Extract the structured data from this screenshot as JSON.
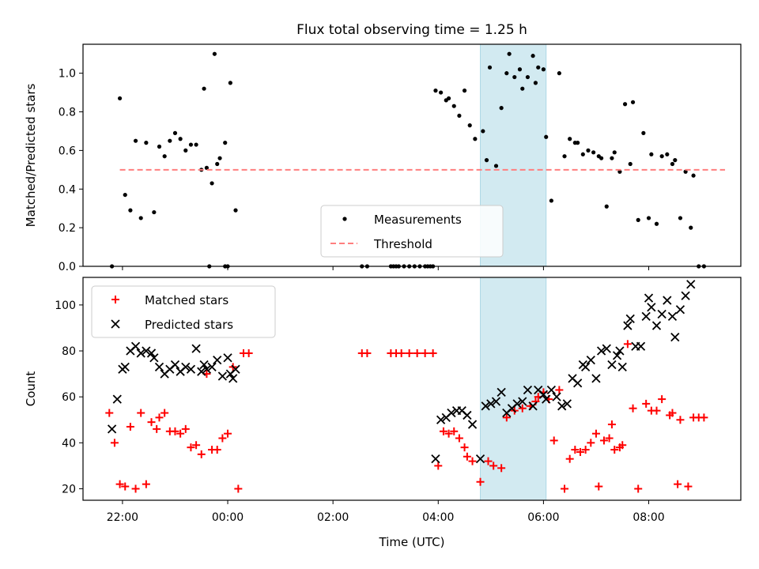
{
  "figure": {
    "title": "Flux total observing time = 1.25 h"
  },
  "chart_data": [
    {
      "type": "scatter",
      "name": "top",
      "ylabel": "Matched/Predicted stars",
      "ylim": [
        0,
        1.15
      ],
      "yticks": [
        0.0,
        0.2,
        0.4,
        0.6,
        0.8,
        1.0
      ],
      "ytick_labels": [
        "0.0",
        "0.2",
        "0.4",
        "0.6",
        "0.8",
        "1.0"
      ],
      "xlim": [
        -2.75,
        9.75
      ],
      "shaded_span": {
        "x0": 4.8,
        "x1": 6.05,
        "color": "#add8e6"
      },
      "legend": {
        "placement": "lower-center"
      },
      "series": [
        {
          "name": "Measurements",
          "color": "#000000",
          "marker": "dot",
          "x": [
            -2.2,
            -2.05,
            -1.95,
            -1.85,
            -1.75,
            -1.65,
            -1.55,
            -1.4,
            -1.3,
            -1.2,
            -1.1,
            -1.0,
            -0.9,
            -0.8,
            -0.7,
            -0.6,
            -0.5,
            -0.45,
            -0.4,
            -0.3,
            -0.2,
            -0.15,
            -0.05,
            0.05,
            0.15,
            -0.25,
            -0.35,
            3.95,
            4.05,
            4.15,
            4.2,
            4.3,
            4.4,
            4.5,
            4.6,
            4.7,
            4.85,
            4.92,
            4.98,
            5.1,
            5.2,
            5.3,
            5.35,
            5.45,
            5.55,
            5.6,
            5.7,
            5.8,
            5.85,
            5.9,
            6.0,
            6.05,
            6.15,
            6.3,
            6.4,
            6.5,
            6.6,
            6.65,
            6.75,
            6.85,
            6.95,
            7.05,
            7.1,
            7.2,
            7.3,
            7.35,
            7.45,
            7.55,
            7.65,
            7.7,
            7.8,
            7.9,
            8.0,
            8.05,
            8.15,
            8.25,
            8.35,
            8.45,
            8.5,
            8.6,
            8.7,
            8.8,
            8.85,
            8.95,
            9.05
          ],
          "y": [
            0.0,
            0.87,
            0.37,
            0.29,
            0.65,
            0.25,
            0.64,
            0.28,
            0.62,
            0.57,
            0.65,
            0.69,
            0.66,
            0.6,
            0.63,
            0.63,
            0.5,
            0.92,
            0.51,
            0.43,
            0.53,
            0.56,
            0.64,
            0.95,
            0.29,
            1.1,
            0.0,
            0.91,
            0.9,
            0.86,
            0.87,
            0.83,
            0.78,
            0.91,
            0.73,
            0.66,
            0.7,
            0.55,
            1.03,
            0.52,
            0.82,
            1.0,
            1.1,
            0.98,
            1.02,
            0.92,
            0.98,
            1.09,
            0.95,
            1.03,
            1.02,
            0.67,
            0.34,
            1.0,
            0.57,
            0.66,
            0.64,
            0.64,
            0.58,
            0.6,
            0.59,
            0.57,
            0.56,
            0.31,
            0.56,
            0.59,
            0.49,
            0.84,
            0.53,
            0.85,
            0.24,
            0.69,
            0.25,
            0.58,
            0.22,
            0.57,
            0.58,
            0.53,
            0.55,
            0.25,
            0.49,
            0.2,
            0.47,
            0.0,
            0.0
          ]
        },
        {
          "name": "",
          "color": "#000000",
          "marker": "dot",
          "x": [
            -0.05,
            0.0,
            2.55,
            2.65,
            3.1,
            3.15,
            3.2,
            3.25,
            3.35,
            3.45,
            3.55,
            3.65,
            3.75,
            3.8,
            3.85,
            3.9
          ],
          "y": [
            0.0,
            0.0,
            0.0,
            0.0,
            0.0,
            0.0,
            0.0,
            0.0,
            0.0,
            0.0,
            0.0,
            0.0,
            0.0,
            0.0,
            0.0,
            0.0
          ]
        },
        {
          "name": "Threshold",
          "color": "#ff7f7f",
          "style": "dashed",
          "x": [
            -2.05,
            9.45
          ],
          "y": [
            0.5,
            0.5
          ]
        }
      ]
    },
    {
      "type": "scatter",
      "name": "bottom",
      "ylabel": "Count",
      "xlabel": "Time (UTC)",
      "ylim": [
        15,
        112
      ],
      "yticks": [
        20,
        40,
        60,
        80,
        100
      ],
      "ytick_labels": [
        "20",
        "40",
        "60",
        "80",
        "100"
      ],
      "xlim": [
        -2.75,
        9.75
      ],
      "xticks": [
        -2,
        0,
        2,
        4,
        6,
        8
      ],
      "xtick_labels": [
        "22:00",
        "00:00",
        "02:00",
        "04:00",
        "06:00",
        "08:00"
      ],
      "shaded_span": {
        "x0": 4.8,
        "x1": 6.05,
        "color": "#add8e6"
      },
      "legend": {
        "placement": "top-left"
      },
      "series": [
        {
          "name": "Matched stars",
          "color": "#ff0000",
          "marker": "plus",
          "x": [
            -2.25,
            -2.15,
            -2.05,
            -1.95,
            -1.85,
            -1.75,
            -1.65,
            -1.55,
            -1.45,
            -1.35,
            -1.3,
            -1.2,
            -1.1,
            -1.0,
            -0.9,
            -0.8,
            -0.7,
            -0.6,
            -0.5,
            -0.4,
            -0.3,
            -0.2,
            -0.1,
            0.0,
            0.1,
            0.2,
            0.3,
            0.4,
            2.55,
            2.65,
            3.1,
            3.2,
            3.3,
            3.45,
            3.6,
            3.75,
            3.9,
            4.0,
            4.1,
            4.2,
            4.3,
            4.4,
            4.5,
            4.55,
            4.65,
            4.8,
            4.95,
            5.05,
            5.2,
            5.3,
            5.45,
            5.6,
            5.75,
            5.85,
            5.9,
            6.0,
            6.1,
            6.2,
            6.3,
            6.4,
            6.5,
            6.6,
            6.7,
            6.8,
            6.9,
            7.0,
            7.05,
            7.15,
            7.25,
            7.3,
            7.35,
            7.45,
            7.5,
            7.6,
            7.7,
            7.8,
            7.95,
            8.05,
            8.15,
            8.25,
            8.4,
            8.45,
            8.55,
            8.6,
            8.75,
            8.85,
            8.95,
            9.05
          ],
          "y": [
            53,
            40,
            22,
            21,
            47,
            20,
            53,
            22,
            49,
            46,
            51,
            53,
            45,
            45,
            44,
            46,
            38,
            39,
            35,
            70,
            37,
            37,
            42,
            44,
            73,
            20,
            79,
            79,
            79,
            79,
            79,
            79,
            79,
            79,
            79,
            79,
            79,
            30,
            45,
            44,
            45,
            42,
            38,
            34,
            32,
            23,
            32,
            30,
            29,
            51,
            54,
            55,
            56,
            58,
            60,
            62,
            59,
            41,
            63,
            20,
            33,
            37,
            36,
            37,
            40,
            44,
            21,
            41,
            42,
            48,
            37,
            38,
            39,
            83,
            55,
            20,
            57,
            54,
            54,
            59,
            52,
            53,
            22,
            50,
            21,
            51,
            51,
            51
          ],
          "x_note": ""
        },
        {
          "name": "Predicted stars",
          "color": "#000000",
          "marker": "x",
          "x": [
            -2.2,
            -2.1,
            -2.0,
            -1.95,
            -1.85,
            -1.75,
            -1.65,
            -1.55,
            -1.45,
            -1.4,
            -1.3,
            -1.2,
            -1.1,
            -1.0,
            -0.9,
            -0.8,
            -0.7,
            -0.6,
            -0.5,
            -0.45,
            -0.4,
            -0.3,
            -0.2,
            -0.1,
            0.0,
            0.05,
            0.1,
            0.15,
            3.95,
            4.05,
            4.15,
            4.25,
            4.35,
            4.45,
            4.55,
            4.65,
            4.8,
            4.9,
            5.0,
            5.1,
            5.2,
            5.3,
            5.4,
            5.5,
            5.6,
            5.7,
            5.8,
            5.9,
            6.0,
            6.05,
            6.15,
            6.25,
            6.35,
            6.45,
            6.55,
            6.65,
            6.75,
            6.8,
            6.9,
            7.0,
            7.1,
            7.2,
            7.3,
            7.4,
            7.45,
            7.5,
            7.6,
            7.65,
            7.75,
            7.85,
            7.95,
            8.0,
            8.05,
            8.15,
            8.25,
            8.35,
            8.45,
            8.5,
            8.6,
            8.7,
            8.8
          ],
          "y": [
            46,
            59,
            72,
            73,
            80,
            82,
            79,
            80,
            79,
            77,
            73,
            70,
            72,
            74,
            71,
            73,
            72,
            81,
            71,
            74,
            72,
            73,
            76,
            69,
            77,
            70,
            68,
            72,
            33,
            50,
            51,
            53,
            54,
            54,
            52,
            48,
            33,
            56,
            57,
            58,
            62,
            53,
            55,
            57,
            58,
            63,
            56,
            63,
            61,
            59,
            63,
            60,
            56,
            57,
            68,
            66,
            74,
            73,
            76,
            68,
            80,
            81,
            74,
            78,
            80,
            73,
            91,
            94,
            82,
            82,
            95,
            103,
            99,
            91,
            96,
            102,
            95,
            86,
            98,
            104,
            109
          ]
        }
      ]
    }
  ]
}
